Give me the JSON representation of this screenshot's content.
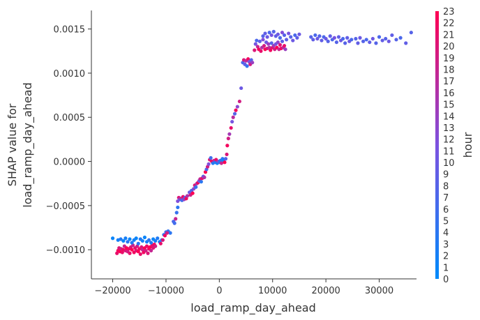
{
  "chart_data": {
    "type": "scatter",
    "xlabel": "load_ramp_day_ahead",
    "ylabel_lines": [
      "SHAP value for",
      "load_ramp_day_ahead"
    ],
    "xlim": [
      -24000,
      37000
    ],
    "ylim": [
      -0.00133,
      0.00171
    ],
    "x_ticks": [
      -20000,
      -10000,
      0,
      10000,
      20000,
      30000
    ],
    "x_tick_labels": [
      "−20000",
      "−10000",
      "0",
      "10000",
      "20000",
      "30000"
    ],
    "y_ticks": [
      -0.001,
      -0.0005,
      0.0,
      0.0005,
      0.001,
      0.0015
    ],
    "y_tick_labels": [
      "−0.0010",
      "−0.0005",
      "0.0000",
      "0.0005",
      "0.0010",
      "0.0015"
    ],
    "colorbar": {
      "label": "hour",
      "min": 0,
      "max": 23,
      "tick_labels": [
        "0",
        "1",
        "2",
        "3",
        "4",
        "5",
        "6",
        "7",
        "8",
        "9",
        "10",
        "11",
        "12",
        "13",
        "14",
        "15",
        "16",
        "17",
        "18",
        "19",
        "20",
        "21",
        "22",
        "23"
      ],
      "colors": [
        "#008afb",
        "#7c52e0",
        "#ff0052"
      ]
    },
    "points": [
      [
        -20000,
        -0.00087,
        1
      ],
      [
        -19200,
        -0.00104,
        21
      ],
      [
        -19000,
        -0.00101,
        22
      ],
      [
        -18800,
        -0.00098,
        20
      ],
      [
        -18600,
        -0.00102,
        23
      ],
      [
        -18400,
        -0.00099,
        19
      ],
      [
        -18200,
        -0.00103,
        21
      ],
      [
        -18000,
        -0.001,
        22
      ],
      [
        -17800,
        -0.00096,
        18
      ],
      [
        -17600,
        -0.00101,
        20
      ],
      [
        -17400,
        -0.00098,
        23
      ],
      [
        -17200,
        -0.00102,
        19
      ],
      [
        -17000,
        -0.00099,
        22
      ],
      [
        -16800,
        -0.00104,
        21
      ],
      [
        -16600,
        -0.00097,
        20
      ],
      [
        -16400,
        -0.001,
        23
      ],
      [
        -16200,
        -0.00095,
        18
      ],
      [
        -16000,
        -0.00103,
        22
      ],
      [
        -15800,
        -0.00098,
        21
      ],
      [
        -15600,
        -0.00101,
        20
      ],
      [
        -15400,
        -0.00096,
        19
      ],
      [
        -15200,
        -0.00102,
        23
      ],
      [
        -15000,
        -0.00099,
        22
      ],
      [
        -14800,
        -0.00105,
        21
      ],
      [
        -14600,
        -0.00097,
        20
      ],
      [
        -14400,
        -0.001,
        18
      ],
      [
        -14200,
        -0.00103,
        22
      ],
      [
        -14000,
        -0.00098,
        23
      ],
      [
        -13800,
        -0.00101,
        19
      ],
      [
        -13600,
        -0.00096,
        21
      ],
      [
        -13400,
        -0.00104,
        20
      ],
      [
        -13200,
        -0.00099,
        22
      ],
      [
        -13000,
        -0.00097,
        23
      ],
      [
        -12800,
        -0.00101,
        18
      ],
      [
        -12600,
        -0.00095,
        21
      ],
      [
        -12400,
        -0.00098,
        20
      ],
      [
        -12200,
        -0.00094,
        22
      ],
      [
        -12000,
        -0.00096,
        19
      ],
      [
        -19000,
        -0.00089,
        2
      ],
      [
        -18500,
        -0.00088,
        3
      ],
      [
        -18000,
        -0.0009,
        1
      ],
      [
        -17600,
        -0.00087,
        2
      ],
      [
        -17200,
        -0.00091,
        4
      ],
      [
        -16800,
        -0.00088,
        1
      ],
      [
        -16400,
        -0.00092,
        3
      ],
      [
        -16000,
        -0.00089,
        2
      ],
      [
        -15600,
        -0.00087,
        1
      ],
      [
        -15200,
        -0.00093,
        4
      ],
      [
        -14800,
        -0.00088,
        3
      ],
      [
        -14400,
        -0.0009,
        2
      ],
      [
        -14000,
        -0.00086,
        1
      ],
      [
        -13600,
        -0.00091,
        2
      ],
      [
        -13200,
        -0.00089,
        4
      ],
      [
        -12800,
        -0.00092,
        3
      ],
      [
        -12400,
        -0.00088,
        1
      ],
      [
        -12000,
        -0.0009,
        2
      ],
      [
        -11600,
        -0.00087,
        3
      ],
      [
        -11200,
        -0.00091,
        2
      ],
      [
        -10800,
        -0.00089,
        4
      ],
      [
        -10400,
        -0.00083,
        5
      ],
      [
        -10000,
        -0.0008,
        6
      ],
      [
        -9600,
        -0.00079,
        5
      ],
      [
        -9200,
        -0.00081,
        4
      ],
      [
        -11000,
        -0.00093,
        21
      ],
      [
        -10600,
        -0.00089,
        20
      ],
      [
        -10200,
        -0.00084,
        22
      ],
      [
        -9800,
        -0.00081,
        19
      ],
      [
        -8600,
        -0.00068,
        7
      ],
      [
        -8400,
        -0.0007,
        6
      ],
      [
        -8200,
        -0.00065,
        18
      ],
      [
        -8000,
        -0.00058,
        5
      ],
      [
        -7800,
        -0.00052,
        4
      ],
      [
        -7800,
        -0.00045,
        12
      ],
      [
        -7600,
        -0.00041,
        20
      ],
      [
        -7400,
        -0.00043,
        9
      ],
      [
        -7200,
        -0.00042,
        17
      ],
      [
        -7000,
        -0.00044,
        6
      ],
      [
        -6800,
        -0.0004,
        21
      ],
      [
        -6600,
        -0.00043,
        14
      ],
      [
        -6400,
        -0.00041,
        8
      ],
      [
        -6200,
        -0.00042,
        22
      ],
      [
        -6000,
        -0.00039,
        16
      ],
      [
        -5600,
        -0.00035,
        10
      ],
      [
        -5400,
        -0.00038,
        19
      ],
      [
        -5200,
        -0.00033,
        7
      ],
      [
        -5000,
        -0.00036,
        23
      ],
      [
        -4800,
        -0.00031,
        13
      ],
      [
        -4600,
        -0.00027,
        20
      ],
      [
        -4400,
        -0.00029,
        5
      ],
      [
        -4200,
        -0.00025,
        15
      ],
      [
        -4000,
        -0.00024,
        22
      ],
      [
        -3800,
        -0.00022,
        11
      ],
      [
        -3600,
        -0.0002,
        18
      ],
      [
        -3400,
        -0.00023,
        4
      ],
      [
        -3200,
        -0.00019,
        21
      ],
      [
        -3000,
        -0.00017,
        9
      ],
      [
        -2800,
        -0.00018,
        16
      ],
      [
        -2600,
        -0.00012,
        23
      ],
      [
        -2400,
        -9e-05,
        7
      ],
      [
        -2200,
        -6e-05,
        19
      ],
      [
        -2000,
        -3e-05,
        12
      ],
      [
        -1800,
        2e-05,
        20
      ],
      [
        -1600,
        4e-05,
        6
      ],
      [
        -1400,
        0.0,
        22
      ],
      [
        -1200,
        -2e-05,
        3
      ],
      [
        -1000,
        1e-05,
        17
      ],
      [
        -800,
        -1e-05,
        4
      ],
      [
        -600,
        2e-05,
        21
      ],
      [
        -400,
        -2e-05,
        2
      ],
      [
        -200,
        0.0,
        14
      ],
      [
        0,
        -1e-05,
        5
      ],
      [
        200,
        1e-05,
        3
      ],
      [
        400,
        -2e-05,
        18
      ],
      [
        600,
        3e-05,
        4
      ],
      [
        800,
        1e-05,
        1
      ],
      [
        1000,
        -1e-05,
        23
      ],
      [
        1200,
        3e-05,
        8
      ],
      [
        1400,
        8e-05,
        20
      ],
      [
        1500,
        0.00018,
        22
      ],
      [
        1700,
        0.00026,
        19
      ],
      [
        1900,
        0.00031,
        15
      ],
      [
        2200,
        0.00038,
        21
      ],
      [
        2400,
        0.00045,
        11
      ],
      [
        2600,
        0.0005,
        17
      ],
      [
        2900,
        0.00054,
        8
      ],
      [
        3100,
        0.00058,
        22
      ],
      [
        3400,
        0.00062,
        13
      ],
      [
        3800,
        0.00068,
        19
      ],
      [
        4100,
        0.00083,
        10
      ],
      [
        4400,
        0.00112,
        7
      ],
      [
        4600,
        0.00115,
        20
      ],
      [
        4800,
        0.0011,
        9
      ],
      [
        5000,
        0.00114,
        17
      ],
      [
        5200,
        0.00108,
        5
      ],
      [
        5400,
        0.00116,
        22
      ],
      [
        5600,
        0.00113,
        12
      ],
      [
        5800,
        0.0011,
        19
      ],
      [
        6000,
        0.00115,
        8
      ],
      [
        6200,
        0.00112,
        14
      ],
      [
        6600,
        0.00126,
        20
      ],
      [
        6800,
        0.00133,
        11
      ],
      [
        7000,
        0.00137,
        7
      ],
      [
        7200,
        0.0013,
        18
      ],
      [
        7400,
        0.00127,
        22
      ],
      [
        7600,
        0.00136,
        9
      ],
      [
        7800,
        0.00125,
        21
      ],
      [
        8000,
        0.00129,
        16
      ],
      [
        8200,
        0.00138,
        12
      ],
      [
        8400,
        0.00131,
        19
      ],
      [
        8600,
        0.00127,
        23
      ],
      [
        8800,
        0.00135,
        10
      ],
      [
        9000,
        0.00128,
        20
      ],
      [
        9200,
        0.00133,
        14
      ],
      [
        9400,
        0.00129,
        17
      ],
      [
        9600,
        0.00126,
        22
      ],
      [
        9800,
        0.00134,
        8
      ],
      [
        10000,
        0.00129,
        21
      ],
      [
        10200,
        0.00131,
        15
      ],
      [
        10400,
        0.00127,
        19
      ],
      [
        10600,
        0.00133,
        11
      ],
      [
        10800,
        0.00129,
        23
      ],
      [
        11000,
        0.00135,
        13
      ],
      [
        11200,
        0.00127,
        18
      ],
      [
        11400,
        0.00132,
        20
      ],
      [
        11600,
        0.00128,
        22
      ],
      [
        11800,
        0.00136,
        9
      ],
      [
        12000,
        0.00129,
        17
      ],
      [
        12200,
        0.00131,
        21
      ],
      [
        12400,
        0.00127,
        14
      ],
      [
        8200,
        0.00142,
        8
      ],
      [
        8600,
        0.00145,
        9
      ],
      [
        9000,
        0.00141,
        10
      ],
      [
        9400,
        0.00146,
        7
      ],
      [
        9800,
        0.00143,
        11
      ],
      [
        10200,
        0.00147,
        8
      ],
      [
        10600,
        0.00142,
        9
      ],
      [
        11000,
        0.00144,
        10
      ],
      [
        11400,
        0.0014,
        7
      ],
      [
        11800,
        0.00146,
        12
      ],
      [
        12200,
        0.00143,
        8
      ],
      [
        12600,
        0.00138,
        9
      ],
      [
        13000,
        0.00145,
        11
      ],
      [
        13400,
        0.00141,
        8
      ],
      [
        13800,
        0.00137,
        10
      ],
      [
        14200,
        0.00143,
        7
      ],
      [
        14600,
        0.0014,
        9
      ],
      [
        15000,
        0.00144,
        10
      ],
      [
        17200,
        0.00141,
        8
      ],
      [
        17600,
        0.00138,
        9
      ],
      [
        18000,
        0.00143,
        7
      ],
      [
        18400,
        0.00139,
        10
      ],
      [
        18800,
        0.00142,
        8
      ],
      [
        19200,
        0.00137,
        9
      ],
      [
        19600,
        0.00141,
        7
      ],
      [
        20000,
        0.00139,
        10
      ],
      [
        20400,
        0.00136,
        8
      ],
      [
        20800,
        0.00142,
        9
      ],
      [
        21200,
        0.00138,
        7
      ],
      [
        21600,
        0.0014,
        11
      ],
      [
        22000,
        0.00135,
        8
      ],
      [
        22400,
        0.00141,
        9
      ],
      [
        22800,
        0.00137,
        10
      ],
      [
        23200,
        0.00139,
        7
      ],
      [
        23600,
        0.00134,
        8
      ],
      [
        24000,
        0.0014,
        9
      ],
      [
        24400,
        0.00136,
        10
      ],
      [
        24800,
        0.00138,
        7
      ],
      [
        25600,
        0.00139,
        8
      ],
      [
        26000,
        0.00134,
        9
      ],
      [
        26400,
        0.0014,
        10
      ],
      [
        27000,
        0.00136,
        8
      ],
      [
        27600,
        0.00138,
        7
      ],
      [
        28200,
        0.00135,
        9
      ],
      [
        28800,
        0.00139,
        10
      ],
      [
        29400,
        0.00134,
        8
      ],
      [
        30000,
        0.00141,
        7
      ],
      [
        30600,
        0.00137,
        9
      ],
      [
        31200,
        0.00139,
        8
      ],
      [
        31800,
        0.00136,
        10
      ],
      [
        32400,
        0.00143,
        9
      ],
      [
        33200,
        0.00138,
        8
      ],
      [
        34000,
        0.0014,
        7
      ],
      [
        35000,
        0.00134,
        9
      ],
      [
        36000,
        0.00146,
        8
      ]
    ]
  }
}
